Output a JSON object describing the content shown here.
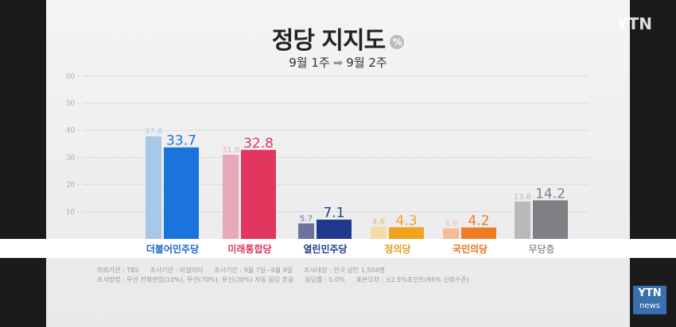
{
  "header": {
    "title": "정당 지지도",
    "unit_badge": "%",
    "period_from": "9월 1주",
    "period_to": "9월 2주",
    "watermark": "YTN"
  },
  "chart_data": {
    "type": "bar",
    "title": "정당 지지도",
    "ylim": [
      0,
      60
    ],
    "yticks": [
      10,
      20,
      30,
      40,
      50,
      60
    ],
    "grid": true,
    "categories": [
      "더불어민주당",
      "미래통합당",
      "열린민주당",
      "정의당",
      "국민의당",
      "무당층"
    ],
    "series": [
      {
        "name": "9월 1주",
        "values": [
          37.8,
          31.0,
          5.7,
          4.6,
          3.9,
          13.8
        ]
      },
      {
        "name": "9월 2주",
        "values": [
          33.7,
          32.8,
          7.1,
          4.3,
          4.2,
          14.2
        ]
      }
    ],
    "colors_old": [
      "#a9c7e6",
      "#e8a8b9",
      "#6e719c",
      "#f3dca8",
      "#f6b99a",
      "#b9b9bb"
    ],
    "colors_new": [
      "#1b74dc",
      "#e1375f",
      "#1f3a8c",
      "#f0a31f",
      "#ef7b22",
      "#7e8084"
    ],
    "label_colors": [
      "#1b64c8",
      "#e1375f",
      "#1f3a8c",
      "#e39a1a",
      "#ea6d1a",
      "#666666"
    ]
  },
  "notes": {
    "line1": [
      "의뢰기관 : TBS",
      "조사기관 : 리얼미터",
      "조사기간 : 9월 7일~9월 9일",
      "조사대상 : 전국 성인 1,504명"
    ],
    "line2": [
      "조사방법 : 무선 전화면접(10%), 무선(70%), 유선(20%) 자동 응답 혼용",
      "응답률 : 5.0%",
      "표본오차 : ±2.5%포인트(95% 신뢰수준)"
    ]
  },
  "footer": {
    "logo": "YTN",
    "logo_sub": "news"
  }
}
